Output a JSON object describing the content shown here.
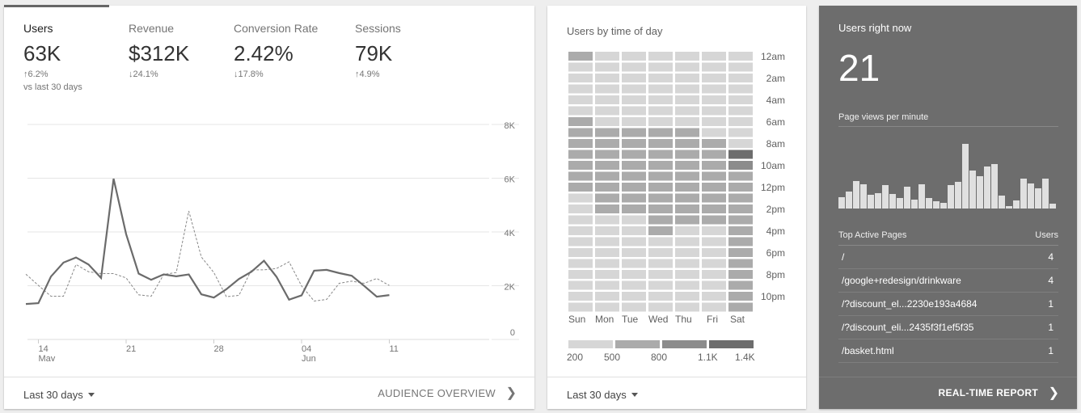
{
  "overview": {
    "metrics": [
      {
        "label": "Users",
        "value": "63K",
        "change": "↑6.2%",
        "active": true
      },
      {
        "label": "Revenue",
        "value": "$312K",
        "change": "↓24.1%"
      },
      {
        "label": "Conversion Rate",
        "value": "2.42%",
        "change": "↓17.8%"
      },
      {
        "label": "Sessions",
        "value": "79K",
        "change": "↑4.9%"
      }
    ],
    "comparison": "vs last 30 days",
    "date_range": "Last 30 days",
    "link": "AUDIENCE OVERVIEW"
  },
  "chart_data": [
    {
      "type": "line",
      "y_ticks": [
        "0",
        "2K",
        "4K",
        "6K",
        "8K"
      ],
      "ylim": [
        0,
        8000
      ],
      "grid": true,
      "x_ticks": [
        {
          "day": "14",
          "month": "May"
        },
        {
          "day": "21",
          "month": ""
        },
        {
          "day": "28",
          "month": ""
        },
        {
          "day": "04",
          "month": "Jun"
        },
        {
          "day": "11",
          "month": ""
        }
      ],
      "x": "May 13 – Jun 11 (daily)",
      "series": [
        {
          "style": "solid",
          "values": [
            1320,
            1350,
            2340,
            2860,
            3050,
            2790,
            2290,
            5980,
            3920,
            2450,
            2220,
            2420,
            2350,
            2420,
            1680,
            1560,
            1870,
            2250,
            2520,
            2930,
            2330,
            1480,
            1640,
            2560,
            2590,
            2470,
            2370,
            1990,
            1590,
            1650
          ]
        },
        {
          "style": "dashed",
          "values": [
            2430,
            2010,
            1610,
            1610,
            2790,
            2520,
            2450,
            2450,
            2290,
            1660,
            1610,
            2420,
            2490,
            4780,
            3070,
            2490,
            1590,
            1640,
            2590,
            2590,
            2640,
            2890,
            1990,
            1430,
            1490,
            2090,
            2170,
            2090,
            2270,
            2010
          ]
        }
      ]
    },
    {
      "type": "heatmap",
      "title": "Users by time of day",
      "columns": [
        "Sun",
        "Mon",
        "Tue",
        "Wed",
        "Thu",
        "Fri",
        "Sat"
      ],
      "row_labels": [
        "12am",
        "2am",
        "4am",
        "6am",
        "8am",
        "10am",
        "12pm",
        "2pm",
        "4pm",
        "6pm",
        "8pm",
        "10pm"
      ],
      "legend": [
        "200",
        "500",
        "800",
        "1.1K",
        "1.4K"
      ],
      "levels": [
        [
          1,
          0,
          0,
          0,
          0,
          0,
          0
        ],
        [
          0,
          0,
          0,
          0,
          0,
          0,
          0
        ],
        [
          0,
          0,
          0,
          0,
          0,
          0,
          0
        ],
        [
          0,
          0,
          0,
          0,
          0,
          0,
          0
        ],
        [
          0,
          0,
          0,
          0,
          0,
          0,
          0
        ],
        [
          0,
          0,
          0,
          0,
          0,
          0,
          0
        ],
        [
          1,
          0,
          0,
          0,
          0,
          0,
          0
        ],
        [
          1,
          1,
          1,
          1,
          1,
          0,
          0
        ],
        [
          1,
          1,
          1,
          1,
          1,
          1,
          0
        ],
        [
          1,
          1,
          1,
          1,
          1,
          1,
          3
        ],
        [
          1,
          1,
          1,
          1,
          1,
          1,
          2
        ],
        [
          1,
          1,
          1,
          1,
          1,
          1,
          1
        ],
        [
          1,
          1,
          1,
          1,
          1,
          1,
          1
        ],
        [
          0,
          1,
          1,
          1,
          1,
          1,
          1
        ],
        [
          0,
          1,
          1,
          1,
          1,
          1,
          1
        ],
        [
          0,
          0,
          0,
          1,
          1,
          1,
          1
        ],
        [
          0,
          0,
          0,
          1,
          0,
          0,
          1
        ],
        [
          0,
          0,
          0,
          0,
          0,
          0,
          1
        ],
        [
          0,
          0,
          0,
          0,
          0,
          0,
          1
        ],
        [
          0,
          0,
          0,
          0,
          0,
          0,
          1
        ],
        [
          0,
          0,
          0,
          0,
          0,
          0,
          1
        ],
        [
          0,
          0,
          0,
          0,
          0,
          0,
          1
        ],
        [
          0,
          0,
          0,
          0,
          0,
          0,
          1
        ],
        [
          0,
          0,
          0,
          0,
          0,
          0,
          1
        ]
      ],
      "colors": [
        "#d6d6d6",
        "#ababab",
        "#8c8c8c",
        "#6d6d6d"
      ]
    },
    {
      "type": "bar",
      "title": "Page views per minute",
      "values": [
        42,
        63,
        102,
        90,
        51,
        57,
        87,
        54,
        39,
        81,
        33,
        90,
        39,
        27,
        21,
        87,
        99,
        240,
        141,
        120,
        156,
        165,
        48,
        9,
        30,
        111,
        93,
        75,
        111,
        18
      ]
    }
  ],
  "heatmap_card": {
    "title": "Users by time of day",
    "date_range": "Last 30 days"
  },
  "realtime": {
    "title": "Users right now",
    "value": "21",
    "sub": "Page views per minute",
    "table_header": [
      "Top Active Pages",
      "Users"
    ],
    "rows": [
      {
        "page": "/",
        "users": "4"
      },
      {
        "page": "/google+redesign/drinkware",
        "users": "4"
      },
      {
        "page": "/?discount_el...2230e193a4684",
        "users": "1"
      },
      {
        "page": "/?discount_eli...2435f3f1ef5f35",
        "users": "1"
      },
      {
        "page": "/basket.html",
        "users": "1"
      }
    ],
    "link": "REAL-TIME REPORT"
  }
}
